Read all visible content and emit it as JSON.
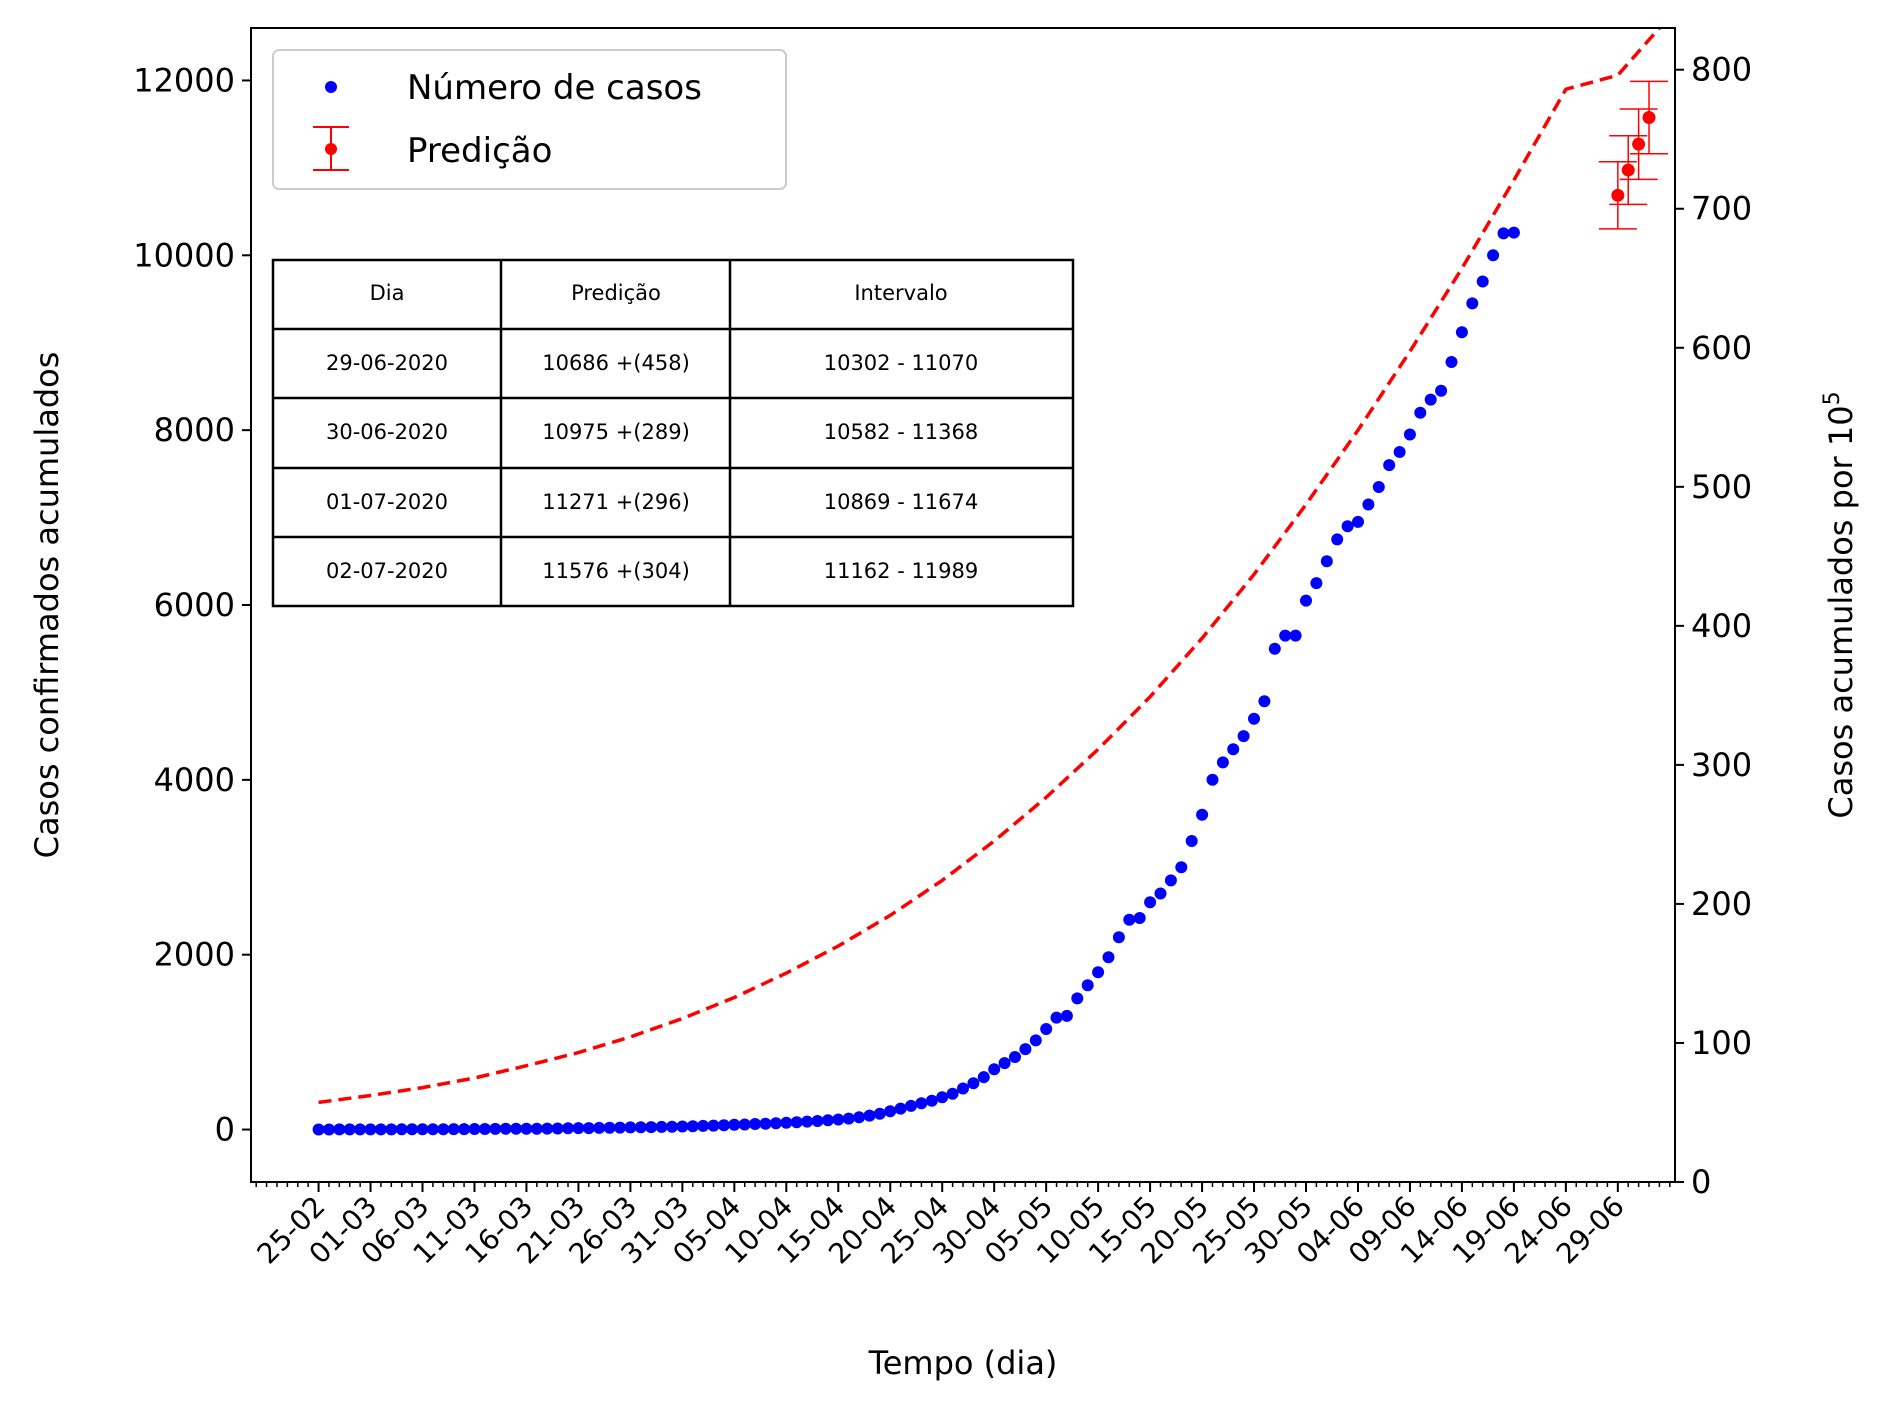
{
  "chart_data": {
    "type": "scatter",
    "xlabel": "Tempo (dia)",
    "ylabel": "Casos confirmados acumulados",
    "ylabel_right_prefix": "Casos acumulados por 10",
    "ylabel_right_exp": "5",
    "x_tick_labels": [
      "25-02",
      "01-03",
      "06-03",
      "11-03",
      "16-03",
      "21-03",
      "26-03",
      "31-03",
      "05-04",
      "10-04",
      "15-04",
      "20-04",
      "25-04",
      "30-04",
      "05-05",
      "10-05",
      "15-05",
      "20-05",
      "25-05",
      "30-05",
      "04-06",
      "09-06",
      "14-06",
      "19-06",
      "24-06",
      "29-06"
    ],
    "x_tick_step_days": 5,
    "x_range_days": [
      -6.5,
      130.5
    ],
    "ylim": [
      -600,
      12600
    ],
    "y_ticks": [
      0,
      2000,
      4000,
      6000,
      8000,
      10000,
      12000
    ],
    "y2lim": [
      0,
      830
    ],
    "y2_ticks": [
      0,
      100,
      200,
      300,
      400,
      500,
      600,
      700,
      800
    ],
    "legend_position": "upper left",
    "colors": {
      "observed": "#0000ff",
      "prediction": "#ff0000",
      "fit": "#ff0000"
    },
    "series": [
      {
        "name": "Número de casos",
        "marker": "dot",
        "x_start_date": "25-02",
        "y": [
          1,
          1,
          2,
          2,
          2,
          2,
          2,
          2,
          3,
          3,
          4,
          4,
          4,
          5,
          5,
          6,
          6,
          7,
          8,
          9,
          9,
          10,
          11,
          12,
          14,
          16,
          17,
          19,
          20,
          22,
          24,
          26,
          28,
          30,
          33,
          35,
          38,
          42,
          45,
          49,
          54,
          58,
          63,
          67,
          72,
          78,
          84,
          91,
          98,
          106,
          115,
          125,
          140,
          160,
          180,
          210,
          240,
          270,
          300,
          330,
          370,
          410,
          470,
          530,
          600,
          690,
          760,
          830,
          920,
          1020,
          1150,
          1280,
          1300,
          1500,
          1650,
          1800,
          1970,
          2200,
          2400,
          2420,
          2600,
          2700,
          2850,
          3000,
          3300,
          3600,
          4000,
          4200,
          4350,
          4500,
          4700,
          4900,
          5500,
          5650,
          5650,
          6050,
          6250,
          6500,
          6750,
          6900,
          6950,
          7150,
          7350,
          7600,
          7750,
          7950,
          8200,
          8350,
          8450,
          8780,
          9120,
          9450,
          9700,
          10000,
          10250,
          10260
        ]
      },
      {
        "name": "Predição",
        "marker": "dot-errorbar",
        "x_days": [
          125,
          126,
          127,
          128
        ],
        "y": [
          10686,
          10975,
          11271,
          11576
        ],
        "y_err_low": [
          384,
          393,
          402,
          414
        ],
        "y_err_high": [
          384,
          393,
          403,
          413
        ]
      }
    ],
    "fit_curve": {
      "style": "dashed",
      "x_days": [
        0,
        5,
        10,
        15,
        20,
        25,
        30,
        35,
        40,
        45,
        50,
        55,
        60,
        65,
        70,
        75,
        80,
        85,
        90,
        95,
        100,
        105,
        110,
        115,
        120,
        125,
        129
      ],
      "y": [
        310,
        390,
        480,
        590,
        730,
        880,
        1060,
        1270,
        1510,
        1790,
        2100,
        2450,
        2850,
        3300,
        3800,
        4350,
        4950,
        5620,
        6350,
        7150,
        8000,
        8900,
        9850,
        10860,
        11900,
        12060,
        12600
      ]
    }
  },
  "legend": {
    "observed_label": "Número de casos",
    "prediction_label": "Predição"
  },
  "table": {
    "headers": [
      "Dia",
      "Predição",
      "Intervalo"
    ],
    "rows": [
      [
        "29-06-2020",
        "10686 +(458)",
        "10302 - 11070"
      ],
      [
        "30-06-2020",
        "10975 +(289)",
        "10582 - 11368"
      ],
      [
        "01-07-2020",
        "11271 +(296)",
        "10869 - 11674"
      ],
      [
        "02-07-2020",
        "11576 +(304)",
        "11162 - 11989"
      ]
    ]
  }
}
